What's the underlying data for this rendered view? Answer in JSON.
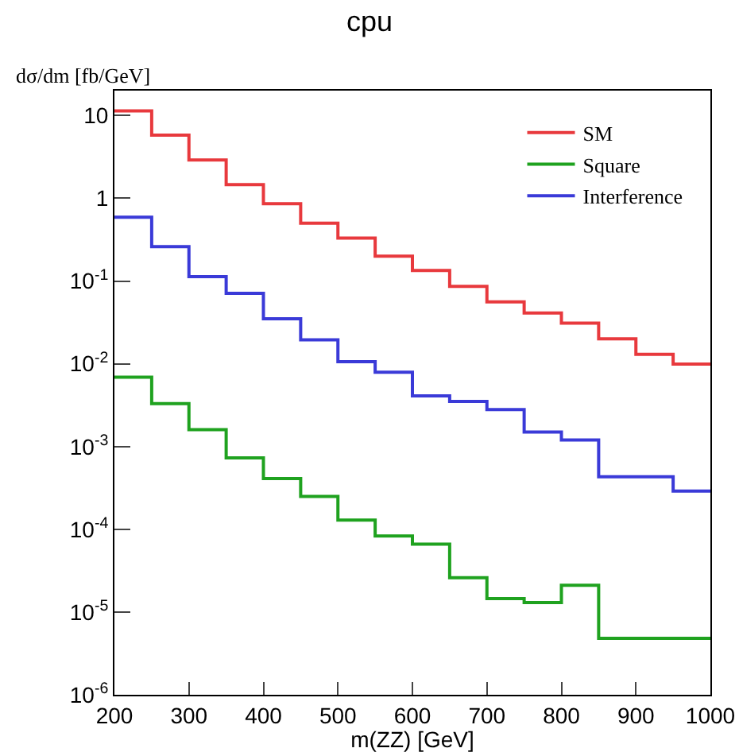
{
  "chart_data": {
    "type": "histogram",
    "title": "cpu",
    "xlabel": "m(ZZ) [GeV]",
    "ylabel": "dσ/dm [fb/GeV]",
    "bins": [
      200,
      250,
      300,
      350,
      400,
      450,
      500,
      550,
      600,
      650,
      700,
      750,
      800,
      850,
      900,
      950,
      1000
    ],
    "series": [
      {
        "name": "SM",
        "color": "#e8393d",
        "values": [
          11.4,
          5.8,
          2.9,
          1.46,
          0.86,
          0.5,
          0.33,
          0.2,
          0.134,
          0.086,
          0.056,
          0.041,
          0.031,
          0.02,
          0.013,
          0.0099
        ]
      },
      {
        "name": "Square",
        "color": "#1fa21f",
        "values": [
          0.0069,
          0.0033,
          0.0016,
          0.00073,
          0.00041,
          0.00025,
          0.000129,
          8.3e-05,
          6.6e-05,
          2.6e-05,
          1.45e-05,
          1.3e-05,
          2.1e-05,
          4.8e-06,
          4.8e-06,
          4.8e-06
        ]
      },
      {
        "name": "Interference",
        "color": "#3a3ad8",
        "values": [
          0.59,
          0.26,
          0.113,
          0.071,
          0.035,
          0.0195,
          0.0106,
          0.0079,
          0.0041,
          0.0035,
          0.0028,
          0.0015,
          0.0012,
          0.00043,
          0.00043,
          0.00029
        ]
      }
    ],
    "log": "y",
    "xlim": [
      200,
      1000
    ],
    "xticks": [
      200,
      300,
      400,
      500,
      600,
      700,
      800,
      900,
      1000
    ],
    "ylim": [
      1e-06,
      20
    ],
    "yticks": [
      {
        "value": 1e-06,
        "label": "10$^{-6}$"
      },
      {
        "value": 1e-05,
        "label": "10$^{-5}$"
      },
      {
        "value": 0.0001,
        "label": "10$^{-4}$"
      },
      {
        "value": 0.001,
        "label": "10$^{-3}$"
      },
      {
        "value": 0.01,
        "label": "10$^{-2}$"
      },
      {
        "value": 0.1,
        "label": "10$^{-1}$"
      },
      {
        "value": 1,
        "label": "1"
      },
      {
        "value": 10,
        "label": "10"
      }
    ],
    "legend": "top right",
    "grid": false
  }
}
